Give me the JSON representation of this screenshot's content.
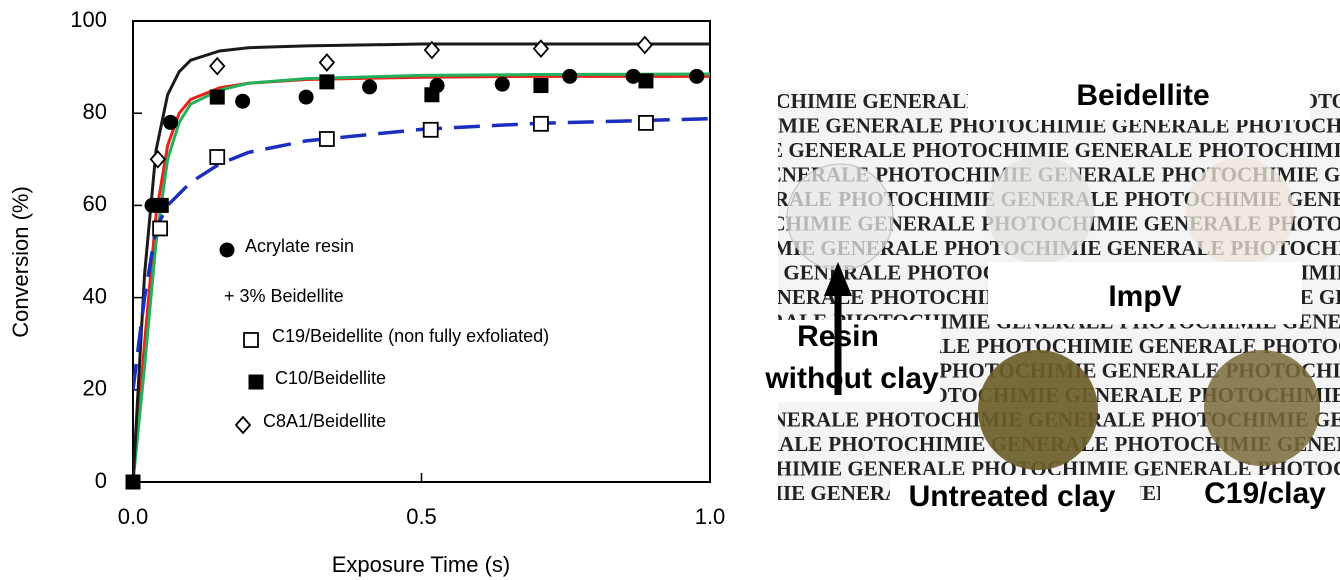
{
  "chart_data": {
    "type": "scatter",
    "x_label": "Exposure Time (s)",
    "y_label": "Conversion (%)",
    "xlim": [
      0,
      1
    ],
    "ylim": [
      0,
      100
    ],
    "xticks": [
      {
        "value": 0,
        "label": "0.0"
      },
      {
        "value": 0.5,
        "label": "0.5"
      },
      {
        "value": 1,
        "label": "1.0"
      }
    ],
    "yticks": [
      0,
      20,
      40,
      60,
      80,
      100
    ],
    "legend_note": "+ 3% Beidellite",
    "series": [
      {
        "name": "Acrylate resin",
        "marker": "circle",
        "color": "#000000",
        "x": [
          0,
          0.033,
          0.065,
          0.19,
          0.3,
          0.41,
          0.527,
          0.64,
          0.757,
          0.867,
          0.977
        ],
        "values": [
          0,
          60,
          78,
          82.6,
          83.5,
          85.7,
          86,
          86.3,
          88,
          88,
          88
        ],
        "fit": {
          "color": "#e8221b",
          "dash": false,
          "x": [
            0,
            0.02,
            0.04,
            0.06,
            0.08,
            0.1,
            0.15,
            0.2,
            0.3,
            0.5,
            0.7,
            1.0
          ],
          "values": [
            0,
            30,
            58,
            73,
            80,
            83,
            85.5,
            86.5,
            87.3,
            87.8,
            88,
            88
          ]
        }
      },
      {
        "name": "C19/Beidellite (non fully exfoliated)",
        "marker": "open-square",
        "color": "#000000",
        "x": [
          0.047,
          0.146,
          0.336,
          0.516,
          0.707,
          0.889
        ],
        "values": [
          55,
          70.5,
          74.4,
          76.4,
          77.7,
          77.9
        ],
        "fit": {
          "color": "#1a2fbf",
          "dash": true,
          "x": [
            0,
            0.02,
            0.04,
            0.06,
            0.1,
            0.15,
            0.2,
            0.3,
            0.5,
            0.7,
            1.0
          ],
          "values": [
            20,
            40,
            55,
            60,
            65,
            69,
            71.5,
            74,
            76.5,
            77.8,
            78.8
          ]
        }
      },
      {
        "name": "C10/Beidellite",
        "marker": "square",
        "color": "#000000",
        "x": [
          0,
          0.049,
          0.146,
          0.336,
          0.518,
          0.707,
          0.889
        ],
        "values": [
          0,
          60,
          83.5,
          86.8,
          84,
          86,
          87
        ],
        "fit": {
          "color": "#22b15a",
          "dash": false,
          "x": [
            0,
            0.02,
            0.04,
            0.06,
            0.08,
            0.1,
            0.15,
            0.2,
            0.3,
            0.5,
            0.7,
            1.0
          ],
          "values": [
            0,
            25,
            52,
            70,
            78,
            82,
            85,
            86.5,
            87.5,
            88.2,
            88.4,
            88.5
          ]
        }
      },
      {
        "name": "C8A1/Beidellite",
        "marker": "diamond",
        "color": "#000000",
        "x": [
          0.043,
          0.146,
          0.336,
          0.518,
          0.707,
          0.887
        ],
        "values": [
          70,
          90.2,
          91,
          93.7,
          94,
          94.8
        ],
        "fit": {
          "color": "#1a1a1a",
          "dash": false,
          "x": [
            0,
            0.02,
            0.04,
            0.06,
            0.08,
            0.1,
            0.15,
            0.2,
            0.3,
            0.5,
            0.7,
            1.0
          ],
          "values": [
            0,
            45,
            72,
            84,
            89,
            91.5,
            93.5,
            94.2,
            94.6,
            95,
            95,
            95
          ]
        }
      }
    ]
  },
  "photo": {
    "group1": "Beidellite",
    "group2": "ImpV",
    "resin_line1": "Resin",
    "resin_line2": "without clay",
    "untreated": "Untreated clay",
    "c19": "C19/clay",
    "background_text": "PHOTOCHIMIE GENERALE"
  }
}
